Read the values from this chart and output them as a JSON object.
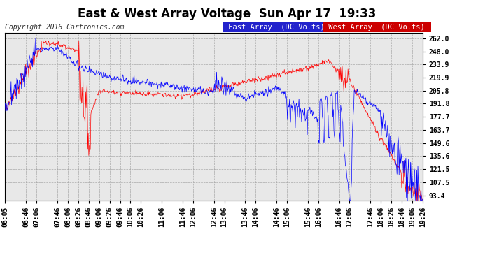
{
  "title": "East & West Array Voltage  Sun Apr 17  19:33",
  "copyright": "Copyright 2016 Cartronics.com",
  "legend_east": "East Array  (DC Volts)",
  "legend_west": "West Array  (DC Volts)",
  "east_color": "#0000ff",
  "west_color": "#ff0000",
  "legend_east_bg": "#2222cc",
  "legend_west_bg": "#cc0000",
  "bg_color": "#ffffff",
  "plot_bg": "#e8e8e8",
  "grid_color": "#aaaaaa",
  "yticks": [
    93.4,
    107.5,
    121.5,
    135.6,
    149.6,
    163.7,
    177.7,
    191.8,
    205.8,
    219.9,
    233.9,
    248.0,
    262.0
  ],
  "ymin": 88.0,
  "ymax": 268.0,
  "xtick_labels": [
    "06:05",
    "06:46",
    "07:06",
    "07:46",
    "08:06",
    "08:26",
    "08:46",
    "09:06",
    "09:26",
    "09:46",
    "10:06",
    "10:26",
    "11:06",
    "11:46",
    "12:06",
    "12:46",
    "13:06",
    "13:46",
    "14:06",
    "14:46",
    "15:06",
    "15:46",
    "16:06",
    "16:46",
    "17:06",
    "17:46",
    "18:06",
    "18:26",
    "18:46",
    "19:06",
    "19:26"
  ],
  "title_fontsize": 12,
  "copyright_fontsize": 7,
  "tick_fontsize": 7,
  "legend_fontsize": 7.5
}
